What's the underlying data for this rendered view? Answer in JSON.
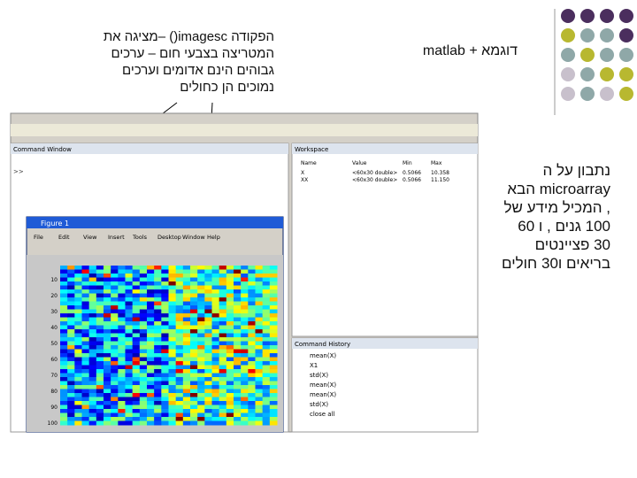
{
  "header": {
    "note_lines": [
      "הפקודה imagesc() –מציגה את",
      "המטריצה בצבעי חום – ערכים",
      "גבוהים הינם אדומים וערכים",
      "נמוכים הן כחולים"
    ],
    "title": "דוגמא + matlab"
  },
  "side_text": {
    "lines": [
      "נתבון על ה",
      "microarray הבא",
      ", המכיל מידע של",
      "100 גנים , ו 60",
      "30 פציינטים",
      "בריאים ו30 חולים"
    ]
  },
  "screenshot": {
    "command_window": "Command Window",
    "workspace": "Workspace",
    "command_history": "Command History",
    "figure_title": "Figure 1",
    "menu": [
      "File",
      "Edit",
      "View",
      "Insert",
      "Tools",
      "Desktop",
      "Window",
      "Help"
    ],
    "workspace_header": [
      "Name",
      "Value",
      "Min",
      "Max"
    ],
    "workspace_rows": [
      [
        "X",
        "<60x30 double>",
        "0.5066",
        "10.358"
      ],
      [
        "XX",
        "<60x30 double>",
        "0.5066",
        "11.150"
      ]
    ],
    "history": [
      "mean(X)",
      "X1",
      "std(X)",
      "mean(X)",
      "mean(X)",
      "std(X)",
      "close all"
    ],
    "yticks": [
      "10",
      "20",
      "30",
      "40",
      "50",
      "60",
      "70",
      "80",
      "90",
      "100"
    ]
  }
}
